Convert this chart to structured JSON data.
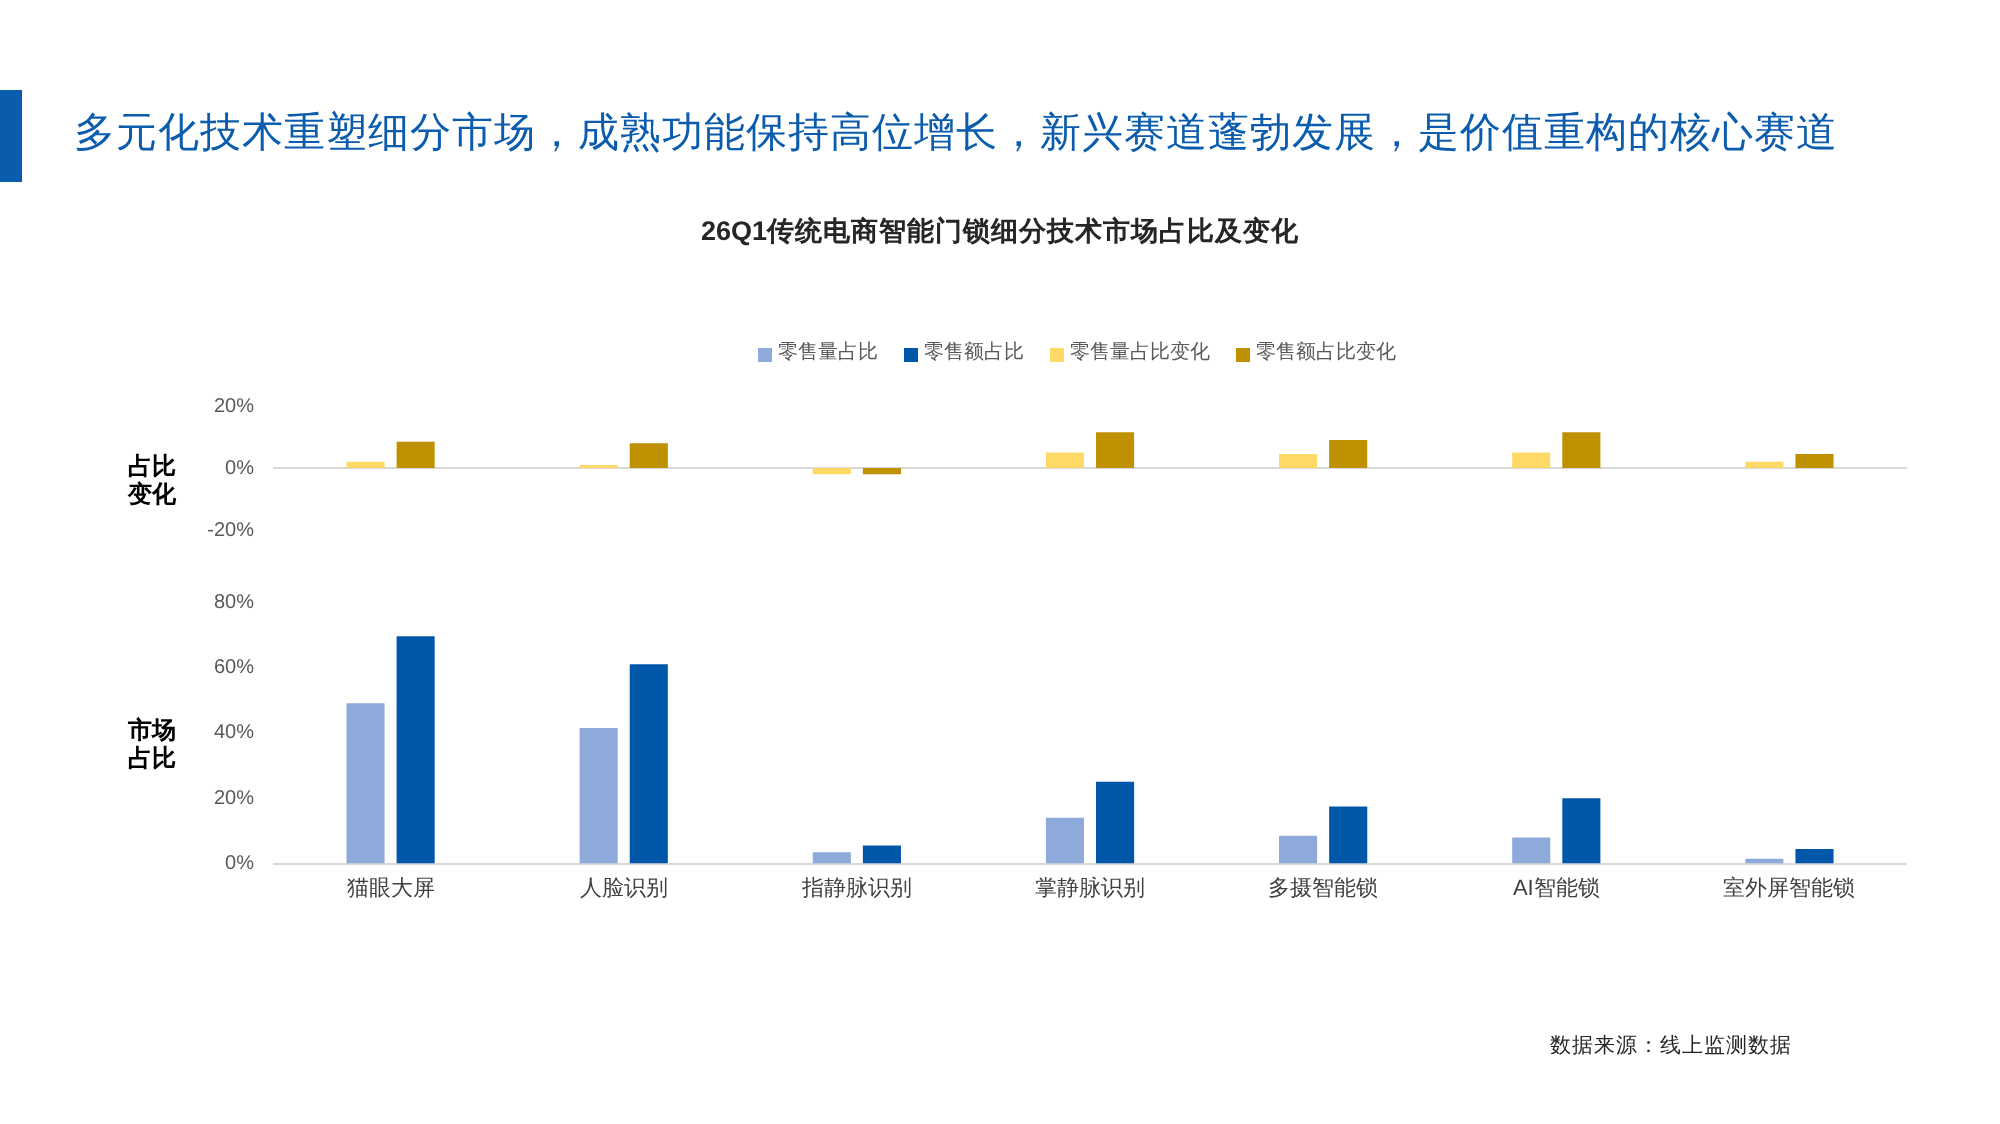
{
  "chart_data": [
    {
      "type": "bar",
      "title": "多元化技术重塑细分市场，成熟功能保持高位增长，新兴赛道蓬勃发展，是价值重构的核心赛道",
      "subtitle": "26Q1传统电商智能门锁细分技术市场占比及变化",
      "ylabel": "占比变化",
      "categories": [
        null,
        null,
        null,
        null,
        null,
        null,
        null
      ],
      "series": [
        {
          "name": "零售量占比变化",
          "color": "#ffd966",
          "values": [
            2,
            1,
            -2,
            5,
            4.5,
            5,
            2
          ]
        },
        {
          "name": "零售额占比变化",
          "color": "#bf9000",
          "values": [
            8.5,
            8,
            -2,
            11.5,
            9,
            11.5,
            4.5
          ]
        }
      ],
      "ylim": [
        -20,
        20
      ],
      "yticks": [
        {
          "value": -20,
          "label": "-20%"
        },
        {
          "value": 0,
          "label": "0%"
        },
        {
          "value": 20,
          "label": "20%"
        }
      ],
      "tick_labels": "y",
      "legend": "top"
    },
    {
      "type": "bar",
      "ylabel": "市场占比",
      "categories": [
        "猫眼大屏",
        "人脸识别",
        "指静脉识别",
        "掌静脉识别",
        "多摄智能锁",
        "AI智能锁",
        "室外屏智能锁"
      ],
      "series": [
        {
          "name": "零售量占比",
          "color": "#8eaadb",
          "values": [
            49,
            41.5,
            3.5,
            14,
            8.5,
            8,
            1.5
          ]
        },
        {
          "name": "零售额占比",
          "color": "#0056a8",
          "values": [
            69.5,
            61,
            5.5,
            25,
            17.5,
            20,
            4.5
          ]
        }
      ],
      "ylim": [
        0,
        80
      ],
      "yticks": [
        {
          "value": 0,
          "label": "0%"
        },
        {
          "value": 20,
          "label": "20%"
        },
        {
          "value": 40,
          "label": "40%"
        },
        {
          "value": 60,
          "label": "60%"
        },
        {
          "value": 80,
          "label": "80%"
        }
      ],
      "legend": "top",
      "annotations": [
        "数据来源：线上监测数据"
      ]
    }
  ]
}
